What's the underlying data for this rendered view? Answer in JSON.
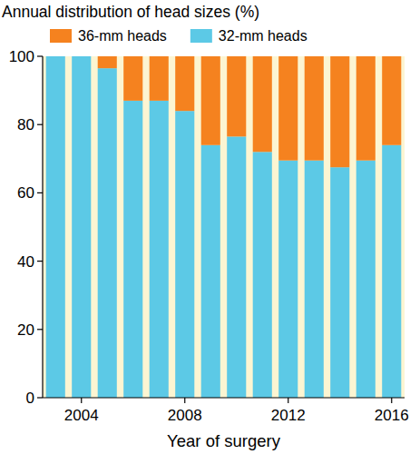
{
  "chart_data": {
    "type": "bar",
    "stacked": true,
    "title": "Annual distribution of head sizes (%)",
    "x_label": "Year of surgery",
    "categories": [
      null,
      "2004",
      null,
      null,
      null,
      "2008",
      null,
      null,
      null,
      "2012",
      null,
      null,
      null,
      "2016"
    ],
    "series": [
      {
        "name": "32-mm heads",
        "color": "#5cc9e6",
        "values": [
          100,
          100,
          96.5,
          87,
          87,
          84,
          74,
          76.5,
          72,
          69.5,
          69.5,
          67.5,
          69.5,
          74
        ]
      },
      {
        "name": "36-mm heads",
        "color": "#f5821f",
        "values": [
          0,
          0,
          3.5,
          13,
          13,
          16,
          26,
          23.5,
          28,
          30.5,
          30.5,
          32.5,
          30.5,
          26
        ]
      }
    ],
    "ylim": [
      0,
      100
    ],
    "yticks": [
      0,
      20,
      40,
      60,
      80,
      100
    ],
    "legend": "top"
  }
}
